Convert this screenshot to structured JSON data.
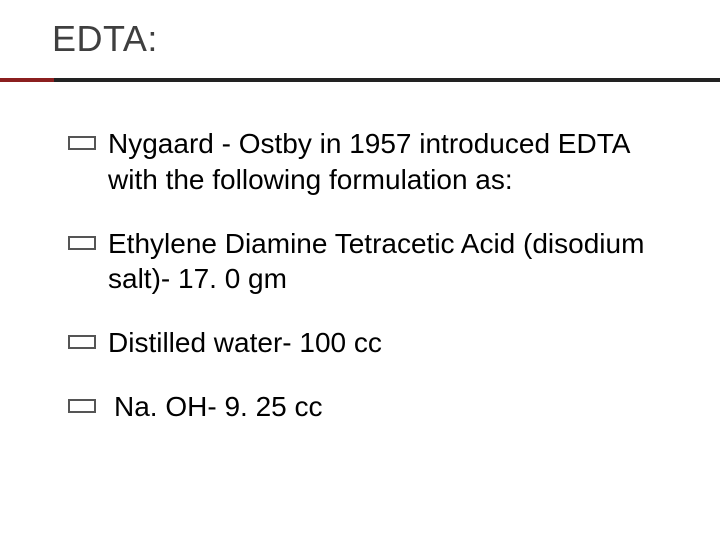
{
  "title": "EDTA:",
  "accent_color": "#8b1f1f",
  "rule_color": "#222222",
  "title_color": "#3f3f3f",
  "text_color": "#000000",
  "bullet_border_color": "#555555",
  "background_color": "#ffffff",
  "title_fontsize": 36,
  "body_fontsize": 28,
  "items": [
    {
      "text": "Nygaard - Ostby in 1957 introduced EDTA with the following formulation as:"
    },
    {
      "text": "Ethylene Diamine Tetracetic Acid (disodium salt)- 17. 0 gm"
    },
    {
      "text": "Distilled water- 100 cc"
    },
    {
      "text": "Na. OH- 9. 25 cc"
    }
  ]
}
